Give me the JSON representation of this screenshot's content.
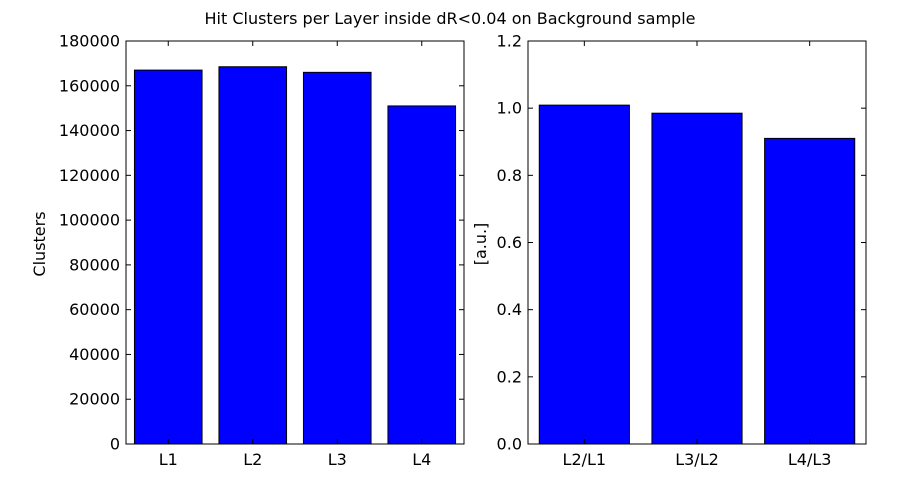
{
  "figure": {
    "title": "Hit Clusters per Layer inside dR<0.04 on Background sample",
    "bar_color": "#0000ff"
  },
  "chart_data": [
    {
      "type": "bar",
      "title": "",
      "xlabel": "",
      "ylabel": "Clusters",
      "categories": [
        "L1",
        "L2",
        "L3",
        "L4"
      ],
      "values": [
        167000,
        168500,
        166000,
        151000
      ],
      "ylim": [
        0,
        180000
      ],
      "yticks": [
        0,
        20000,
        40000,
        60000,
        80000,
        100000,
        120000,
        140000,
        160000,
        180000
      ],
      "ytick_labels": [
        "0",
        "20000",
        "40000",
        "60000",
        "80000",
        "100000",
        "120000",
        "140000",
        "160000",
        "180000"
      ],
      "grid": false
    },
    {
      "type": "bar",
      "title": "",
      "xlabel": "",
      "ylabel": "[a.u.]",
      "categories": [
        "L2/L1",
        "L3/L2",
        "L4/L3"
      ],
      "values": [
        1.009,
        0.985,
        0.91
      ],
      "ylim": [
        0,
        1.2
      ],
      "yticks": [
        0,
        0.2,
        0.4,
        0.6,
        0.8,
        1.0,
        1.2
      ],
      "ytick_labels": [
        "0.0",
        "0.2",
        "0.4",
        "0.6",
        "0.8",
        "1.0",
        "1.2"
      ],
      "grid": false
    }
  ]
}
